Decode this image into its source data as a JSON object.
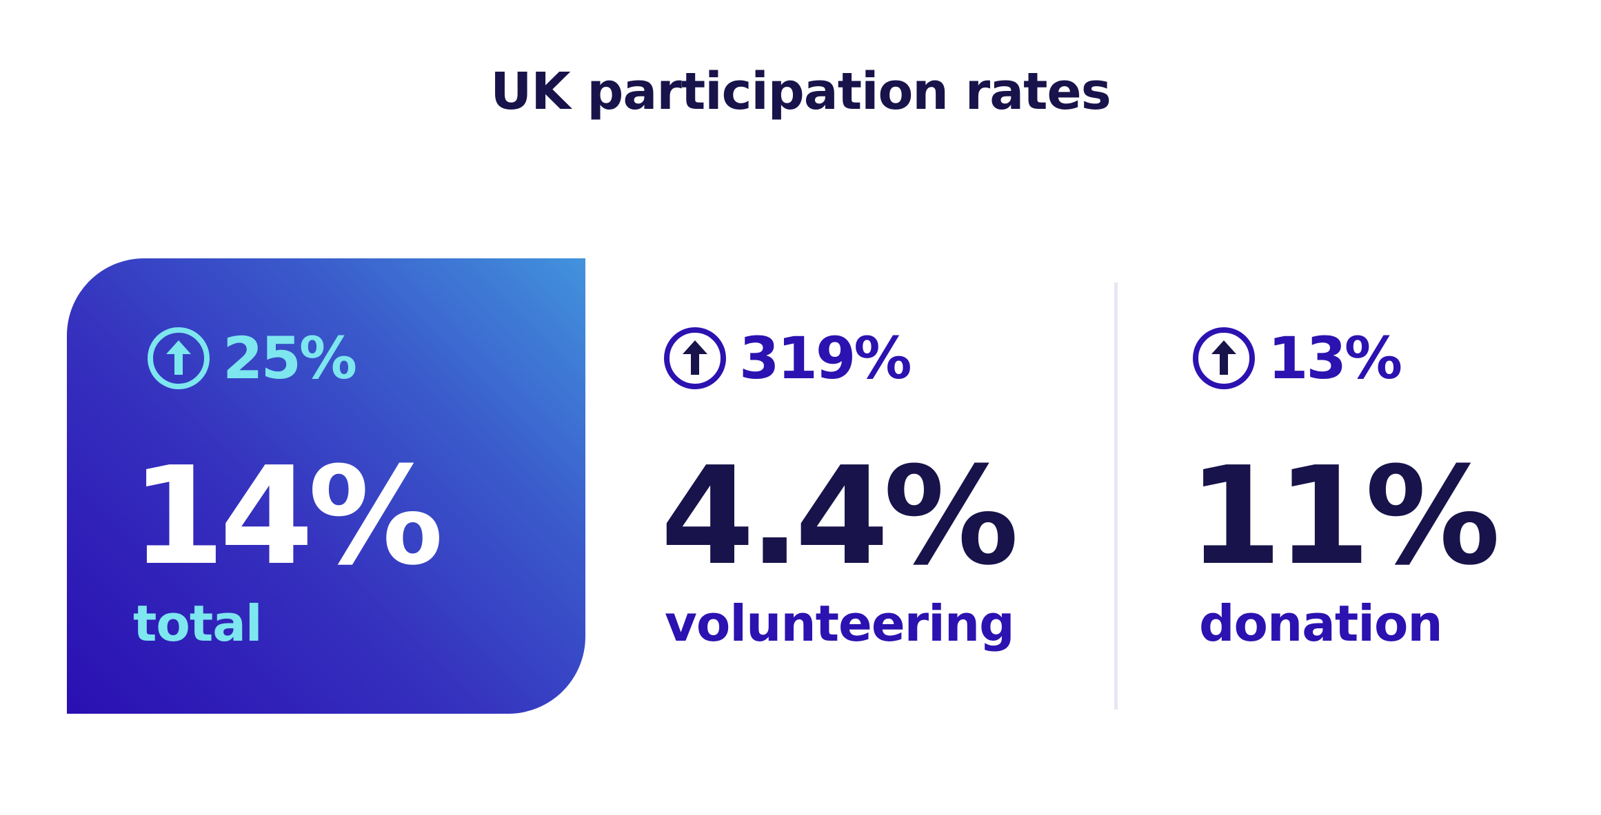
{
  "title": "UK participation rates",
  "colors": {
    "title": "#18134a",
    "card_gradient_start": "#2a0fb2",
    "card_gradient_end": "#4293dd",
    "card_accent": "#7ee6ef",
    "card_value": "#ffffff",
    "accent": "#2c12b0",
    "value": "#18134a",
    "divider": "#e6e7f4"
  },
  "stats": [
    {
      "change_icon": "arrow-up-circle-icon",
      "change": "25%",
      "value": "14%",
      "label": "total"
    },
    {
      "change_icon": "arrow-up-circle-icon",
      "change": "319%",
      "value": "4.4%",
      "label": "volunteering"
    },
    {
      "change_icon": "arrow-up-circle-icon",
      "change": "13%",
      "value": "11%",
      "label": "donation"
    }
  ]
}
